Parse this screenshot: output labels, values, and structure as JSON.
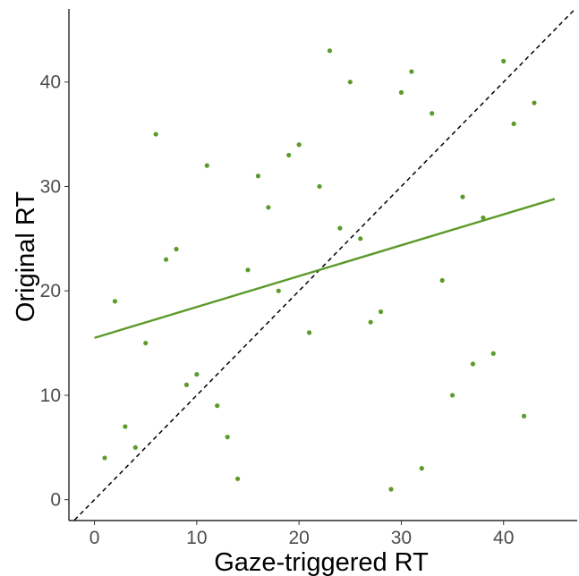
{
  "chart_data": {
    "type": "scatter",
    "title": "",
    "xlabel": "Gaze-triggered RT",
    "ylabel": "Original RT",
    "xlim": [
      -2.5,
      47.2
    ],
    "ylim": [
      -2,
      47
    ],
    "x_ticks": [
      0,
      10,
      20,
      30,
      40
    ],
    "y_ticks": [
      0,
      10,
      20,
      30,
      40
    ],
    "grid": false,
    "legend": "none",
    "point_color": "#5c9a2a",
    "fit_line_color": "#5c9a2a",
    "reference_line_color": "#000000",
    "points": [
      {
        "x": 1,
        "y": 4
      },
      {
        "x": 2,
        "y": 19
      },
      {
        "x": 3,
        "y": 7
      },
      {
        "x": 4,
        "y": 5
      },
      {
        "x": 5,
        "y": 15
      },
      {
        "x": 6,
        "y": 35
      },
      {
        "x": 7,
        "y": 23
      },
      {
        "x": 8,
        "y": 24
      },
      {
        "x": 9,
        "y": 11
      },
      {
        "x": 10,
        "y": 12
      },
      {
        "x": 11,
        "y": 32
      },
      {
        "x": 12,
        "y": 9
      },
      {
        "x": 13,
        "y": 6
      },
      {
        "x": 14,
        "y": 2
      },
      {
        "x": 15,
        "y": 22
      },
      {
        "x": 16,
        "y": 31
      },
      {
        "x": 17,
        "y": 28
      },
      {
        "x": 18,
        "y": 20
      },
      {
        "x": 19,
        "y": 33
      },
      {
        "x": 20,
        "y": 34
      },
      {
        "x": 21,
        "y": 16
      },
      {
        "x": 22,
        "y": 30
      },
      {
        "x": 23,
        "y": 43
      },
      {
        "x": 24,
        "y": 26
      },
      {
        "x": 25,
        "y": 40
      },
      {
        "x": 26,
        "y": 25
      },
      {
        "x": 27,
        "y": 17
      },
      {
        "x": 28,
        "y": 18
      },
      {
        "x": 29,
        "y": 1
      },
      {
        "x": 30,
        "y": 39
      },
      {
        "x": 31,
        "y": 41
      },
      {
        "x": 32,
        "y": 3
      },
      {
        "x": 33,
        "y": 37
      },
      {
        "x": 34,
        "y": 21
      },
      {
        "x": 35,
        "y": 10
      },
      {
        "x": 36,
        "y": 29
      },
      {
        "x": 37,
        "y": 13
      },
      {
        "x": 38,
        "y": 27
      },
      {
        "x": 39,
        "y": 14
      },
      {
        "x": 40,
        "y": 42
      },
      {
        "x": 41,
        "y": 36
      },
      {
        "x": 42,
        "y": 8
      },
      {
        "x": 43,
        "y": 38
      }
    ],
    "fit_line": {
      "x": [
        0,
        45
      ],
      "y": [
        15.5,
        28.8
      ]
    },
    "reference_line": {
      "x": [
        -2.5,
        47.2
      ],
      "y": [
        -2.5,
        47.2
      ],
      "style": "dashed"
    }
  }
}
